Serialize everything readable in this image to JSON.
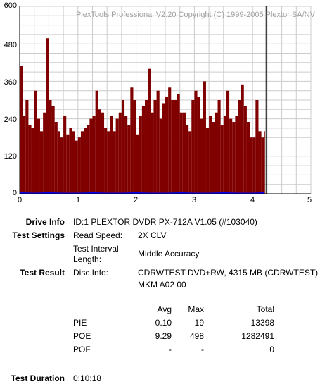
{
  "chart_data": {
    "type": "bar",
    "title": "",
    "watermark": "PlexTools Professional V2.20 Copyright (C) 1999-2005 Plextor SA/NV",
    "xlim": [
      0,
      5
    ],
    "ylim": [
      0,
      600
    ],
    "x_ticks": [
      "0",
      "1",
      "2",
      "3",
      "4",
      "5"
    ],
    "y_ticks": [
      "600",
      "480",
      "360",
      "240",
      "120",
      "0"
    ],
    "grid": true,
    "cursor_x": 4.23,
    "data_end_x": 4.21,
    "series": [
      {
        "name": "POE",
        "color": "#800000",
        "note_peak": 498,
        "x": [
          0.0,
          0.05,
          0.1,
          0.15,
          0.2,
          0.25,
          0.3,
          0.35,
          0.4,
          0.45,
          0.5,
          0.55,
          0.6,
          0.65,
          0.7,
          0.75,
          0.8,
          0.85,
          0.9,
          0.95,
          1.0,
          1.05,
          1.1,
          1.15,
          1.2,
          1.25,
          1.3,
          1.35,
          1.4,
          1.45,
          1.5,
          1.55,
          1.6,
          1.65,
          1.7,
          1.75,
          1.8,
          1.85,
          1.9,
          1.95,
          2.0,
          2.05,
          2.1,
          2.15,
          2.2,
          2.25,
          2.3,
          2.35,
          2.4,
          2.45,
          2.5,
          2.55,
          2.6,
          2.65,
          2.7,
          2.75,
          2.8,
          2.85,
          2.9,
          2.95,
          3.0,
          3.05,
          3.1,
          3.15,
          3.2,
          3.25,
          3.3,
          3.35,
          3.4,
          3.45,
          3.5,
          3.55,
          3.6,
          3.65,
          3.7,
          3.75,
          3.8,
          3.85,
          3.9,
          3.95,
          4.0,
          4.05,
          4.1,
          4.15,
          4.2
        ],
        "values": [
          410,
          250,
          300,
          220,
          210,
          330,
          240,
          200,
          260,
          498,
          300,
          280,
          230,
          200,
          180,
          250,
          190,
          210,
          200,
          170,
          180,
          200,
          210,
          220,
          240,
          250,
          330,
          270,
          260,
          210,
          200,
          250,
          200,
          240,
          260,
          300,
          250,
          220,
          340,
          300,
          190,
          250,
          280,
          300,
          400,
          260,
          300,
          330,
          240,
          290,
          310,
          340,
          300,
          300,
          320,
          260,
          260,
          220,
          200,
          300,
          330,
          310,
          240,
          360,
          210,
          250,
          230,
          260,
          300,
          220,
          250,
          330,
          240,
          230,
          250,
          300,
          350,
          280,
          230,
          180,
          180,
          300,
          200,
          180,
          200
        ]
      },
      {
        "name": "PIE",
        "color": "#0000ff",
        "note_peak": 19,
        "x": [
          0.0,
          0.25,
          0.5,
          0.75,
          1.0,
          1.25,
          1.5,
          1.75,
          2.0,
          2.25,
          2.5,
          2.75,
          3.0,
          3.25,
          3.5,
          3.75,
          4.0,
          4.2
        ],
        "values": [
          1,
          0,
          1,
          0,
          0,
          1,
          0,
          0,
          1,
          0,
          0,
          1,
          0,
          0,
          1,
          0,
          0,
          1
        ]
      }
    ]
  },
  "info": {
    "drive_info_label": "Drive Info",
    "drive_info_value": "ID:1 PLEXTOR DVDR PX-712A V1.05 (#103040)",
    "test_settings_label": "Test Settings",
    "read_speed_label": "Read Speed:",
    "read_speed_value": "2X CLV",
    "interval_label_1": "Test Interval",
    "interval_label_2": "Length:",
    "interval_value": "Middle Accuracy",
    "test_result_label": "Test Result",
    "disc_info_label": "Disc Info:",
    "disc_info_value_1": "CDRWTEST DVD+RW, 4315 MB (CDRWTEST)",
    "disc_info_value_2": "MKM A02 00",
    "col_avg": "Avg",
    "col_max": "Max",
    "col_total": "Total",
    "rows": [
      {
        "name": "PIE",
        "avg": "0.10",
        "max": "19",
        "total": "13398"
      },
      {
        "name": "POE",
        "avg": "9.29",
        "max": "498",
        "total": "1282491"
      },
      {
        "name": "POF",
        "avg": "-",
        "max": "-",
        "total": "0"
      }
    ],
    "duration_label": "Test Duration",
    "duration_value": "0:10:18"
  }
}
